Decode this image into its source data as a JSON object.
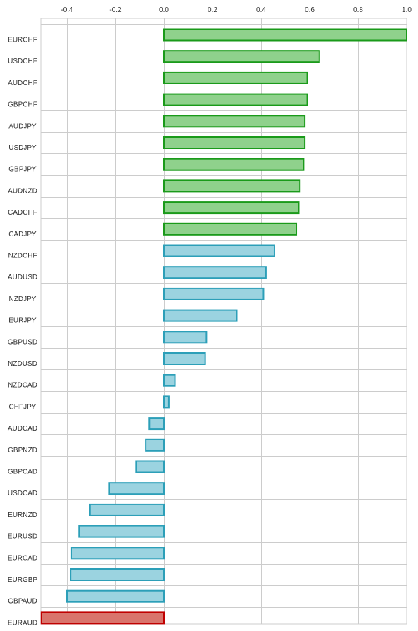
{
  "chart_data": {
    "type": "bar",
    "orientation": "horizontal",
    "title": "",
    "xlabel": "",
    "ylabel": "",
    "xlim": [
      -0.5,
      1.0
    ],
    "x_ticks": [
      -0.4,
      -0.2,
      0.0,
      0.2,
      0.4,
      0.6,
      0.8,
      1.0
    ],
    "x_tick_labels": [
      "-0.4",
      "-0.2",
      "0.0",
      "0.2",
      "0.4",
      "0.6",
      "0.8",
      "1.0"
    ],
    "x_axis_position": "top",
    "grid": true,
    "legend": "none",
    "colors": {
      "positive_strong_fill": "#8fd18c",
      "positive_strong_stroke": "#1a9a1a",
      "neutral_fill": "#9bd3e0",
      "neutral_stroke": "#2c9fb8",
      "negative_strong_fill": "#d9746c",
      "negative_strong_stroke": "#c00000",
      "grid": "#cccccc"
    },
    "categories": [
      "EURCHF",
      "USDCHF",
      "AUDCHF",
      "GBPCHF",
      "AUDJPY",
      "USDJPY",
      "GBPJPY",
      "AUDNZD",
      "CADCHF",
      "CADJPY",
      "NZDCHF",
      "AUDUSD",
      "NZDJPY",
      "EURJPY",
      "GBPUSD",
      "NZDUSD",
      "NZDCAD",
      "CHFJPY",
      "AUDCAD",
      "GBPNZD",
      "GBPCAD",
      "USDCAD",
      "EURNZD",
      "EURUSD",
      "EURCAD",
      "EURGBP",
      "GBPAUD",
      "EURAUD"
    ],
    "values": [
      1.0,
      0.64,
      0.59,
      0.59,
      0.58,
      0.58,
      0.575,
      0.56,
      0.555,
      0.545,
      0.455,
      0.42,
      0.41,
      0.3,
      0.175,
      0.17,
      0.045,
      0.02,
      -0.06,
      -0.075,
      -0.115,
      -0.225,
      -0.305,
      -0.35,
      -0.38,
      -0.385,
      -0.4,
      -0.505
    ],
    "bar_classes": [
      "positive_strong",
      "positive_strong",
      "positive_strong",
      "positive_strong",
      "positive_strong",
      "positive_strong",
      "positive_strong",
      "positive_strong",
      "positive_strong",
      "positive_strong",
      "neutral",
      "neutral",
      "neutral",
      "neutral",
      "neutral",
      "neutral",
      "neutral",
      "neutral",
      "neutral",
      "neutral",
      "neutral",
      "neutral",
      "neutral",
      "neutral",
      "neutral",
      "neutral",
      "neutral",
      "negative_strong"
    ]
  }
}
